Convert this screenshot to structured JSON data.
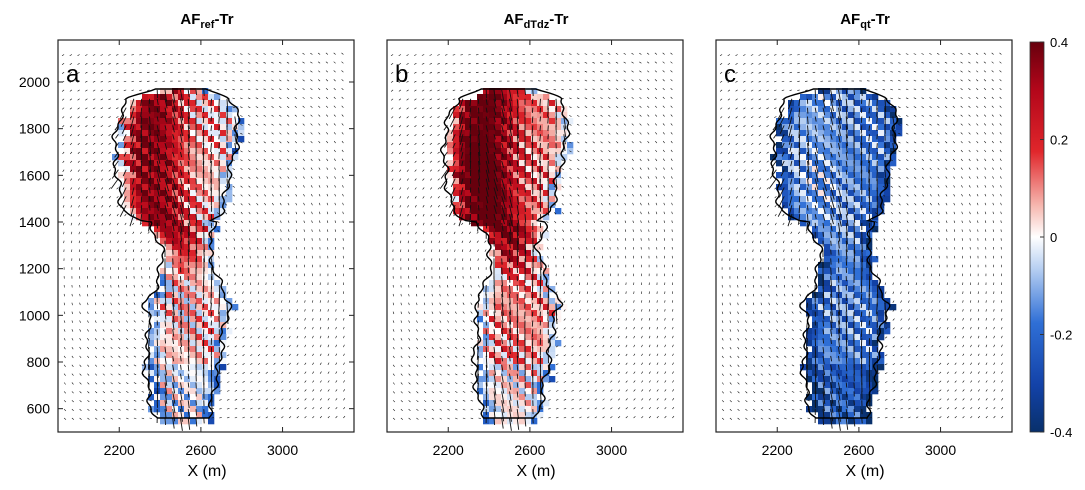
{
  "chart_data": {
    "type": "heatmap",
    "panels": [
      {
        "letter": "a",
        "title_main": "AF",
        "title_sub": "ref",
        "title_suffix": "-Tr",
        "bias": 0.05,
        "red_strength": 0.32
      },
      {
        "letter": "b",
        "title_main": "AF",
        "title_sub": "dTdz",
        "title_suffix": "-Tr",
        "bias": 0.1,
        "red_strength": 0.4
      },
      {
        "letter": "c",
        "title_main": "AF",
        "title_sub": "qt",
        "title_suffix": "-Tr",
        "bias": -0.16,
        "red_strength": 0.05
      }
    ],
    "xlabel": "X (m)",
    "xlim": [
      1900,
      3350
    ],
    "ylim": [
      500,
      2180
    ],
    "x_ticks": [
      2200,
      2600,
      3000
    ],
    "x_tick_labels": [
      "2200",
      "2600",
      "3000"
    ],
    "y_ticks": [
      600,
      800,
      1000,
      1200,
      1400,
      1600,
      1800,
      2000
    ],
    "y_tick_labels": [
      "600",
      "800",
      "1000",
      "1200",
      "1400",
      "1600",
      "1800",
      "2000"
    ],
    "colorbar": {
      "range": [
        -0.4,
        0.4
      ],
      "ticks": [
        0.4,
        0.2,
        0,
        -0.2,
        -0.4
      ],
      "tick_labels": [
        "0.4",
        "0.2",
        "0",
        "-0.2",
        "-0.4"
      ]
    },
    "colors": {
      "negative": "#08306b",
      "mid_negative": "#2f6fd6",
      "zero": "#ffffff",
      "mid_positive": "#e0262b",
      "positive": "#67000d",
      "outline": "#000000"
    }
  }
}
